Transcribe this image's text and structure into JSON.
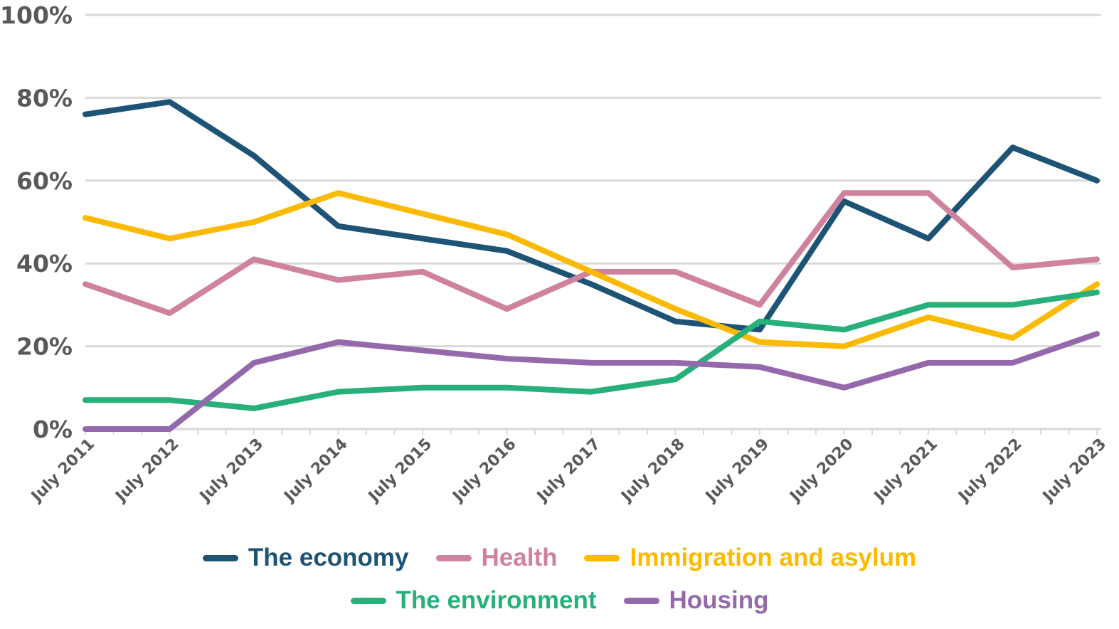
{
  "chart_data": {
    "type": "line",
    "title": "",
    "xlabel": "",
    "ylabel": "",
    "ylim": [
      0,
      100
    ],
    "yticks": [
      "0%",
      "20%",
      "40%",
      "60%",
      "80%",
      "100%"
    ],
    "ytick_values": [
      0,
      20,
      40,
      60,
      80,
      100
    ],
    "grid": true,
    "legend_position": "bottom",
    "categories": [
      "July 2011",
      "July 2012",
      "July 2013",
      "July 2014",
      "July 2015",
      "July 2016",
      "July 2017",
      "July 2018",
      "July 2019",
      "July 2020",
      "July 2021",
      "July 2022",
      "July 2023"
    ],
    "series": [
      {
        "name": "The economy",
        "color": "#1d5374",
        "values": [
          76,
          79,
          66,
          49,
          46,
          43,
          35,
          26,
          24,
          55,
          46,
          68,
          60
        ]
      },
      {
        "name": "Health",
        "color": "#cf829d",
        "values": [
          35,
          28,
          41,
          36,
          38,
          29,
          38,
          38,
          30,
          57,
          57,
          39,
          41
        ]
      },
      {
        "name": "Immigration and asylum",
        "color": "#fbb900",
        "values": [
          51,
          46,
          50,
          57,
          52,
          47,
          38,
          29,
          21,
          20,
          27,
          22,
          35
        ]
      },
      {
        "name": "The environment",
        "color": "#28b07a",
        "values": [
          7,
          7,
          5,
          9,
          10,
          10,
          9,
          12,
          26,
          24,
          30,
          30,
          33
        ]
      },
      {
        "name": "Housing",
        "color": "#9469ab",
        "values": [
          0,
          0,
          16,
          21,
          19,
          17,
          16,
          16,
          15,
          10,
          16,
          16,
          23
        ]
      }
    ]
  },
  "legend": {
    "rows": [
      [
        0,
        1,
        2
      ],
      [
        3,
        4
      ]
    ]
  }
}
